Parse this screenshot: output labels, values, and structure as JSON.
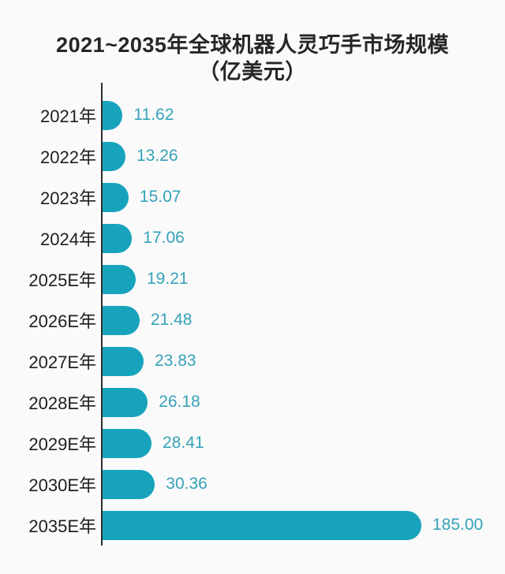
{
  "chart_data": {
    "type": "bar",
    "orientation": "horizontal",
    "title": "2021~2035年全球机器人灵巧手市场规模",
    "unit_label": "（亿美元）",
    "categories": [
      "2021年",
      "2022年",
      "2023年",
      "2024年",
      "2025E年",
      "2026E年",
      "2027E年",
      "2028E年",
      "2029E年",
      "2030E年",
      "2035E年"
    ],
    "values": [
      11.62,
      13.26,
      15.07,
      17.06,
      19.21,
      21.48,
      23.83,
      26.18,
      28.41,
      30.36,
      185.0
    ],
    "value_labels": [
      "11.62",
      "13.26",
      "15.07",
      "17.06",
      "19.21",
      "21.48",
      "23.83",
      "26.18",
      "28.41",
      "30.36",
      "185.00"
    ],
    "xlim": [
      0,
      185
    ],
    "grid": false,
    "legend": "none",
    "colors": {
      "background": "#fafafa",
      "bar": "#17a3bc",
      "value_label": "#35a2b8",
      "axis": "#2e2e2e",
      "title": "#262626",
      "category_label": "#1f1f1f"
    }
  }
}
